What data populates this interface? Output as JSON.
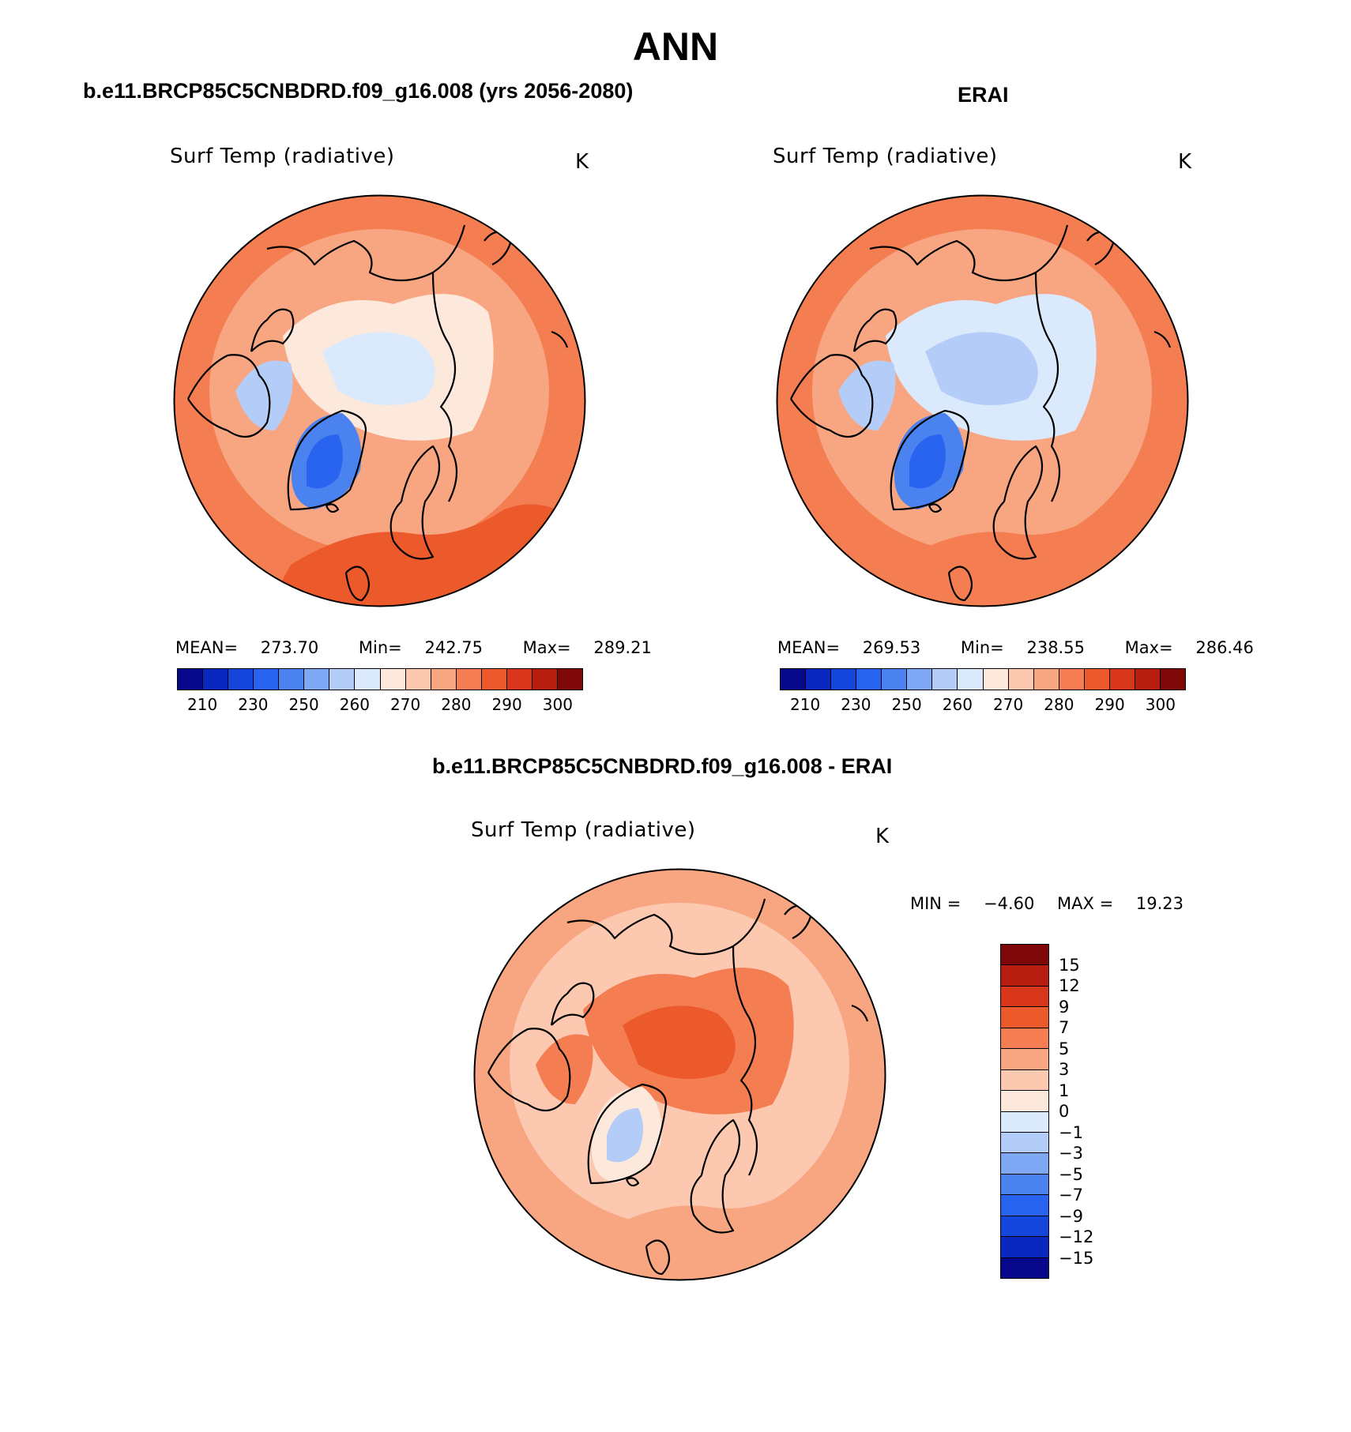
{
  "title": "ANN",
  "panels": [
    {
      "id": "model",
      "case_title": "b.e11.BRCP85C5CNBDRD.f09_g16.008 (yrs 2056-2080)",
      "plot_title": "Surf Temp (radiative)",
      "units": "K",
      "stats": {
        "mean_label": "MEAN=",
        "mean": "273.70",
        "min_label": "Min=",
        "min": "242.75",
        "max_label": "Max=",
        "max": "289.21"
      }
    },
    {
      "id": "obs",
      "case_title": "ERAI",
      "plot_title": "Surf Temp (radiative)",
      "units": "K",
      "stats": {
        "mean_label": "MEAN=",
        "mean": "269.53",
        "min_label": "Min=",
        "min": "238.55",
        "max_label": "Max=",
        "max": "286.46"
      }
    },
    {
      "id": "diff",
      "case_title": "b.e11.BRCP85C5CNBDRD.f09_g16.008 - ERAI",
      "plot_title": "Surf Temp (radiative)",
      "units": "K",
      "stats": {
        "min_label": "MIN =",
        "min": "−4.60",
        "max_label": "MAX =",
        "max": "19.23"
      }
    }
  ],
  "abs_colorbar": {
    "colors": [
      "#08088c",
      "#0a28c0",
      "#1446dc",
      "#2864f0",
      "#4a82f0",
      "#7ea8f4",
      "#b4cdf8",
      "#dae9fb",
      "#fde8dc",
      "#fcc8b0",
      "#f8a582",
      "#f47e52",
      "#ec5a2c",
      "#d8361a",
      "#b81e10",
      "#7e0808"
    ],
    "labels": [
      "210",
      "230",
      "250",
      "260",
      "270",
      "280",
      "290",
      "300"
    ]
  },
  "diff_colorbar": {
    "colors": [
      "#7e0808",
      "#b81e10",
      "#d8361a",
      "#ec5a2c",
      "#f47e52",
      "#f8a582",
      "#fcc8b0",
      "#fde8dc",
      "#dae9fb",
      "#b4cdf8",
      "#7ea8f4",
      "#4a82f0",
      "#2864f0",
      "#1446dc",
      "#0a28c0",
      "#08088c"
    ],
    "labels": [
      "15",
      "12",
      "9",
      "7",
      "5",
      "3",
      "1",
      "0",
      "−1",
      "−3",
      "−5",
      "−7",
      "−9",
      "−12",
      "−15"
    ]
  },
  "map_fields": {
    "model": {
      "ocean": "#f8a582",
      "outer": "#f47e52",
      "arctic": "#fde8dc",
      "ice": "#dae9fb",
      "greenland": "#4a82f0",
      "greenland_core": "#2864f0",
      "europe": "#ec5a2c",
      "archipelago": "#b4cdf8"
    },
    "obs": {
      "ocean": "#f8a582",
      "outer": "#f47e52",
      "arctic": "#dae9fb",
      "ice": "#b4cdf8",
      "greenland": "#4a82f0",
      "greenland_core": "#2864f0",
      "europe": "#f47e52",
      "archipelago": "#b4cdf8"
    },
    "diff": {
      "ocean": "#fcc8b0",
      "outer": "#f8a582",
      "arctic": "#f47e52",
      "ice": "#ec5a2c",
      "greenland": "#fde8dc",
      "greenland_core": "#b4cdf8",
      "europe": "#f8a582",
      "archipelago": "#f47e52"
    }
  }
}
